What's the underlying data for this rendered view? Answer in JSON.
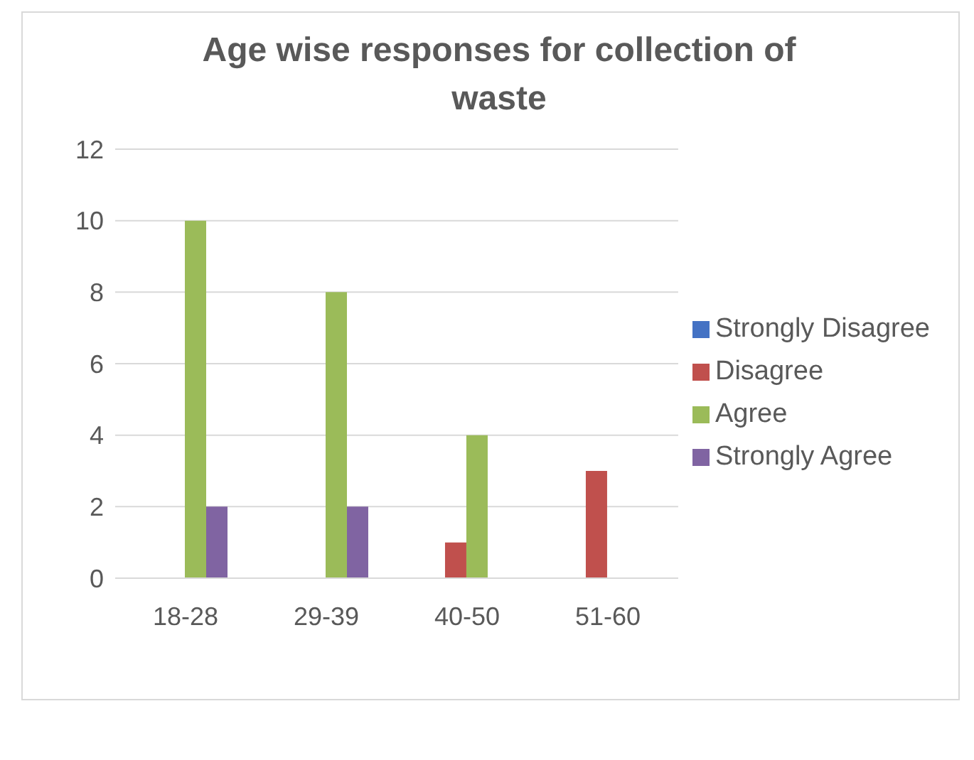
{
  "chart_data": {
    "type": "bar",
    "title": "Age wise responses for collection of waste",
    "categories": [
      "18-28",
      "29-39",
      "40-50",
      "51-60"
    ],
    "series": [
      {
        "name": "Strongly Disagree",
        "color": "#4472c4",
        "values": [
          0,
          0,
          0,
          0
        ]
      },
      {
        "name": "Disagree",
        "color": "#c0504d",
        "values": [
          0,
          0,
          1,
          3
        ]
      },
      {
        "name": "Agree",
        "color": "#9bbb59",
        "values": [
          10,
          8,
          4,
          0
        ]
      },
      {
        "name": "Strongly Agree",
        "color": "#8064a2",
        "values": [
          2,
          2,
          0,
          0
        ]
      }
    ],
    "ylim": [
      0,
      12
    ],
    "yticks": [
      0,
      2,
      4,
      6,
      8,
      10,
      12
    ],
    "grid": "y",
    "legend": "right"
  }
}
